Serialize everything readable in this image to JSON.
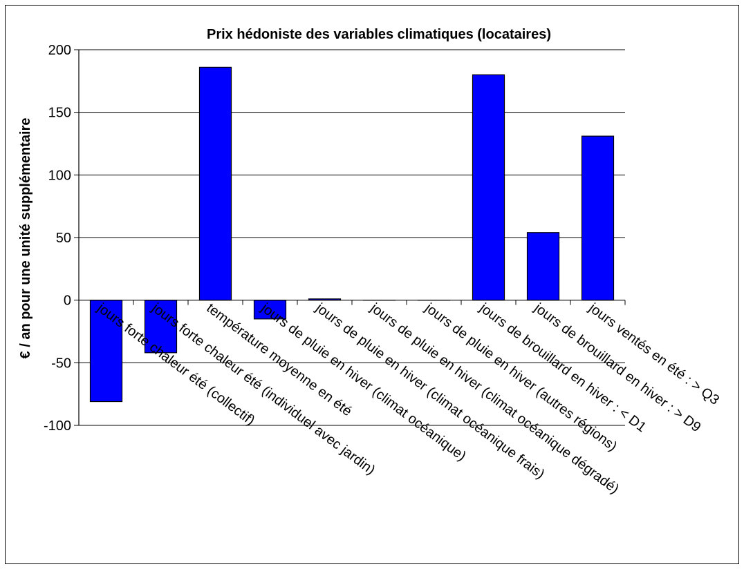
{
  "chart_data": {
    "type": "bar",
    "title": "Prix hédoniste des variables climatiques (locataires)",
    "xlabel": "",
    "ylabel": "€ / an  pour une unité supplémentaire",
    "ylim": [
      -100,
      200
    ],
    "yticks": [
      200,
      150,
      100,
      50,
      0,
      -50,
      -100
    ],
    "ytick_labels": [
      "200",
      "150",
      "100",
      "50",
      "0",
      "-50",
      "-100"
    ],
    "grid": true,
    "legend": "none",
    "bar_color": "#0000FF",
    "categories": [
      "jours forte chaleur été (collectif)",
      "jours forte chaleur été (individuel avec jardin)",
      "température moyenne en été",
      "jours de pluie en hiver (climat océanique)",
      "jours de pluie en hiver (climat océanique frais)",
      "jours de pluie en hiver (climat océanique dégradé)",
      "jours de pluie en hiver (autres régions)",
      "jours de brouillard en hiver : < D1",
      "jours de brouillard en hiver : > D9",
      "jours ventés en été : > Q3"
    ],
    "values": [
      -81,
      -42,
      186,
      -15,
      1,
      0,
      0,
      180,
      54,
      131
    ]
  }
}
